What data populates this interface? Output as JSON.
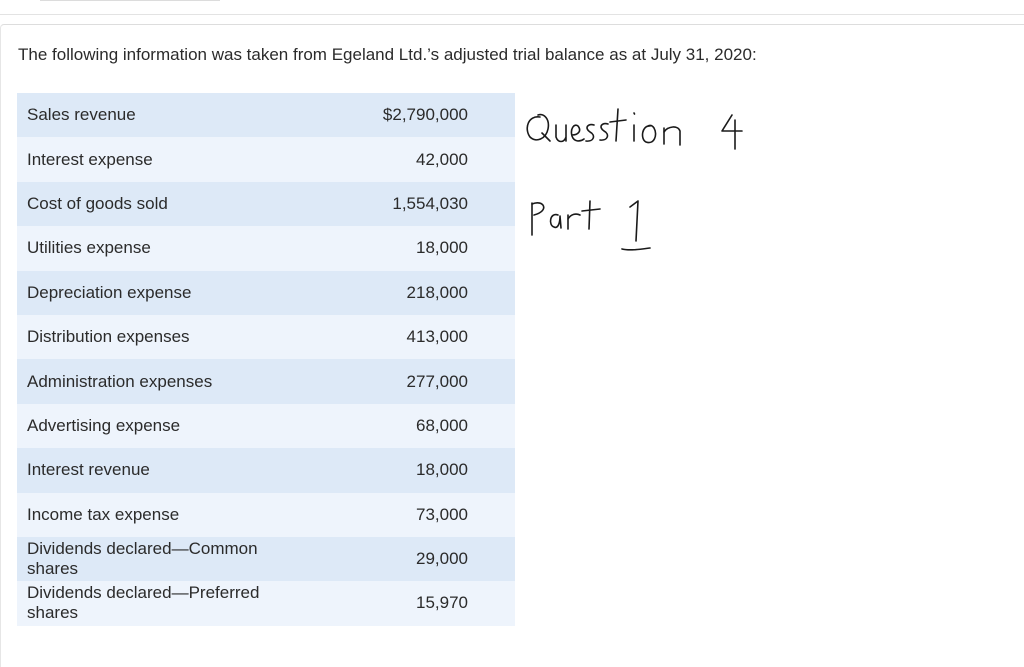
{
  "intro_text": "The following information was taken from Egeland Ltd.’s adjusted trial balance as at July 31, 2020:",
  "trial_balance": [
    {
      "account": "Sales revenue",
      "amount": "$2,790,000"
    },
    {
      "account": "Interest expense",
      "amount": "42,000"
    },
    {
      "account": "Cost of goods sold",
      "amount": "1,554,030"
    },
    {
      "account": "Utilities expense",
      "amount": "18,000"
    },
    {
      "account": "Depreciation expense",
      "amount": "218,000"
    },
    {
      "account": "Distribution expenses",
      "amount": "413,000"
    },
    {
      "account": "Administration expenses",
      "amount": "277,000"
    },
    {
      "account": "Advertising expense",
      "amount": "68,000"
    },
    {
      "account": "Interest revenue",
      "amount": "18,000"
    },
    {
      "account": "Income tax expense",
      "amount": "73,000"
    },
    {
      "account": "Dividends declared—Common shares",
      "amount": "29,000"
    },
    {
      "account": "Dividends declared—Preferred shares",
      "amount": "15,970"
    }
  ],
  "handwritten_notes": [
    "Question 4",
    "Part 1"
  ],
  "colors": {
    "row_dark": "#dde9f7",
    "row_light": "#eef4fc",
    "ink": "#1a1a1a"
  }
}
